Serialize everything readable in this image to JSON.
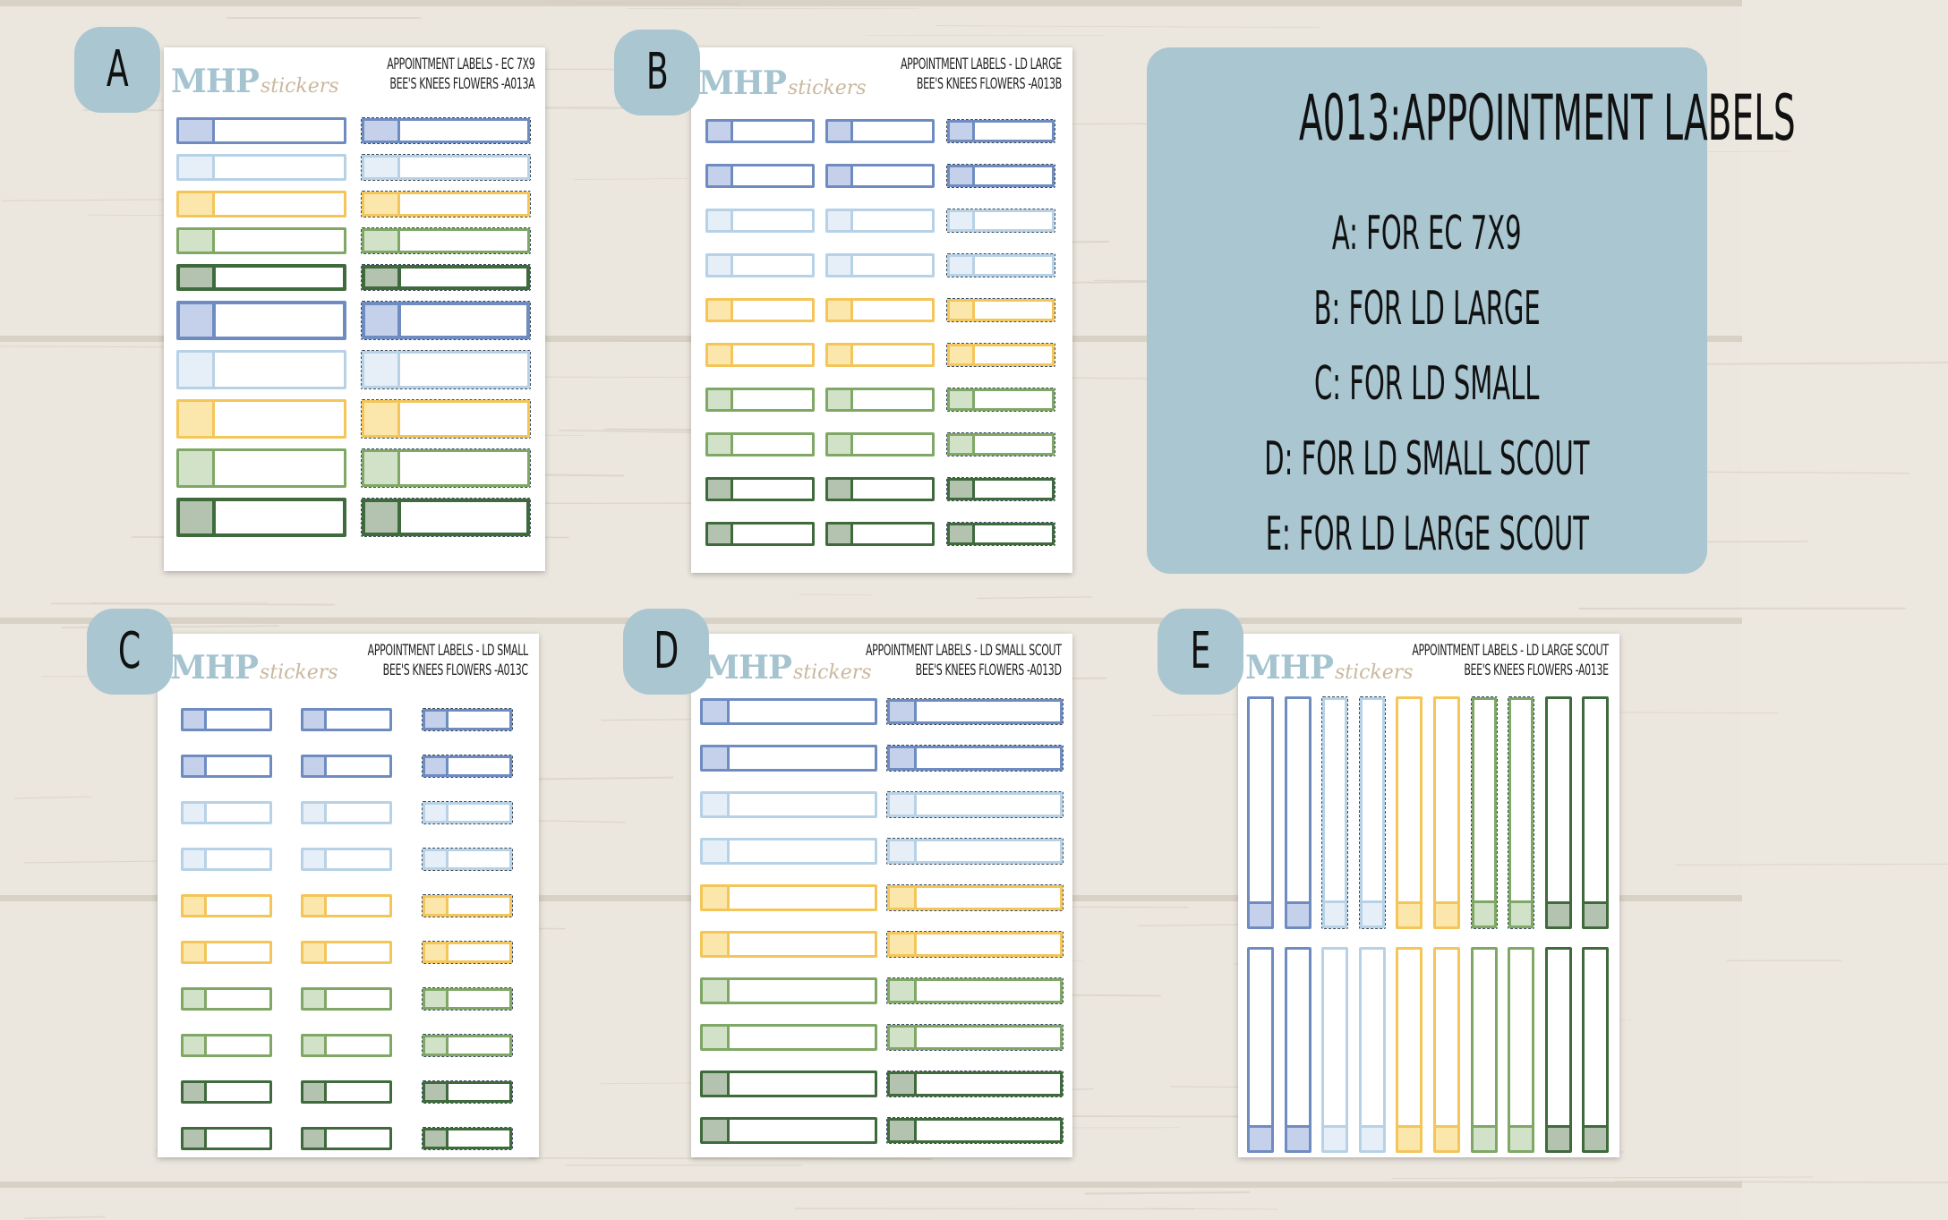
{
  "background": {
    "wood_color": "#eae5dd",
    "seam_color": "#c8bfb3"
  },
  "colors": {
    "blue": {
      "border": "#6f8cc1",
      "fill": "#c5d1ea"
    },
    "lightblue": {
      "border": "#b7d2e6",
      "fill": "#e6eff8"
    },
    "yellow": {
      "border": "#f4c559",
      "fill": "#fbe7ac"
    },
    "green": {
      "border": "#7fa765",
      "fill": "#d2e2c8"
    },
    "darkgreen": {
      "border": "#3f6b3c",
      "fill": "#b4c2b0"
    }
  },
  "info": {
    "title": "A013:APPOINTMENT LABELS",
    "lines": [
      "A: FOR EC 7X9",
      "B: FOR LD LARGE",
      "C: FOR LD SMALL",
      "D: FOR LD SMALL SCOUT",
      "E: FOR LD LARGE SCOUT"
    ]
  },
  "sheets": [
    {
      "id": "a",
      "badge": "A",
      "logo_main": "MHP",
      "logo_script": "stickers",
      "title_line1": "APPOINTMENT LABELS - EC 7X9",
      "title_line2": "BEE'S KNEES FLOWERS -A013A",
      "label_colors": [
        "blue",
        "lightblue",
        "yellow",
        "green",
        "darkgreen",
        "blue",
        "lightblue",
        "yellow",
        "green",
        "darkgreen"
      ],
      "columns": 2,
      "dashed_columns": [
        1
      ]
    },
    {
      "id": "b",
      "badge": "B",
      "logo_main": "MHP",
      "logo_script": "stickers",
      "title_line1": "APPOINTMENT LABELS - LD LARGE",
      "title_line2": "BEE'S KNEES FLOWERS -A013B",
      "label_colors": [
        "blue",
        "blue",
        "lightblue",
        "lightblue",
        "yellow",
        "yellow",
        "green",
        "green",
        "darkgreen",
        "darkgreen"
      ],
      "columns": 3,
      "dashed_columns": [
        2
      ]
    },
    {
      "id": "c",
      "badge": "C",
      "logo_main": "MHP",
      "logo_script": "stickers",
      "title_line1": "APPOINTMENT LABELS - LD SMALL",
      "title_line2": "BEE'S KNEES FLOWERS -A013C",
      "label_colors": [
        "blue",
        "blue",
        "lightblue",
        "lightblue",
        "yellow",
        "yellow",
        "green",
        "green",
        "darkgreen",
        "darkgreen"
      ],
      "columns": 3,
      "dashed_columns": [
        2
      ]
    },
    {
      "id": "d",
      "badge": "D",
      "logo_main": "MHP",
      "logo_script": "stickers",
      "title_line1": "APPOINTMENT LABELS - LD SMALL SCOUT",
      "title_line2": "BEE'S KNEES FLOWERS -A013D",
      "label_colors": [
        "blue",
        "blue",
        "lightblue",
        "lightblue",
        "yellow",
        "yellow",
        "green",
        "green",
        "darkgreen",
        "darkgreen"
      ],
      "columns": 2,
      "dashed_columns": [
        1
      ]
    },
    {
      "id": "e",
      "badge": "E",
      "logo_main": "MHP",
      "logo_script": "stickers",
      "title_line1": "APPOINTMENT LABELS - LD LARGE SCOUT",
      "title_line2": "BEE'S KNEES FLOWERS -A013E",
      "label_colors": [
        "blue",
        "blue",
        "lightblue",
        "lightblue",
        "yellow",
        "yellow",
        "green",
        "green",
        "darkgreen",
        "darkgreen"
      ],
      "columns": 10,
      "dashed_columns": [
        2,
        3,
        6,
        7
      ]
    }
  ]
}
